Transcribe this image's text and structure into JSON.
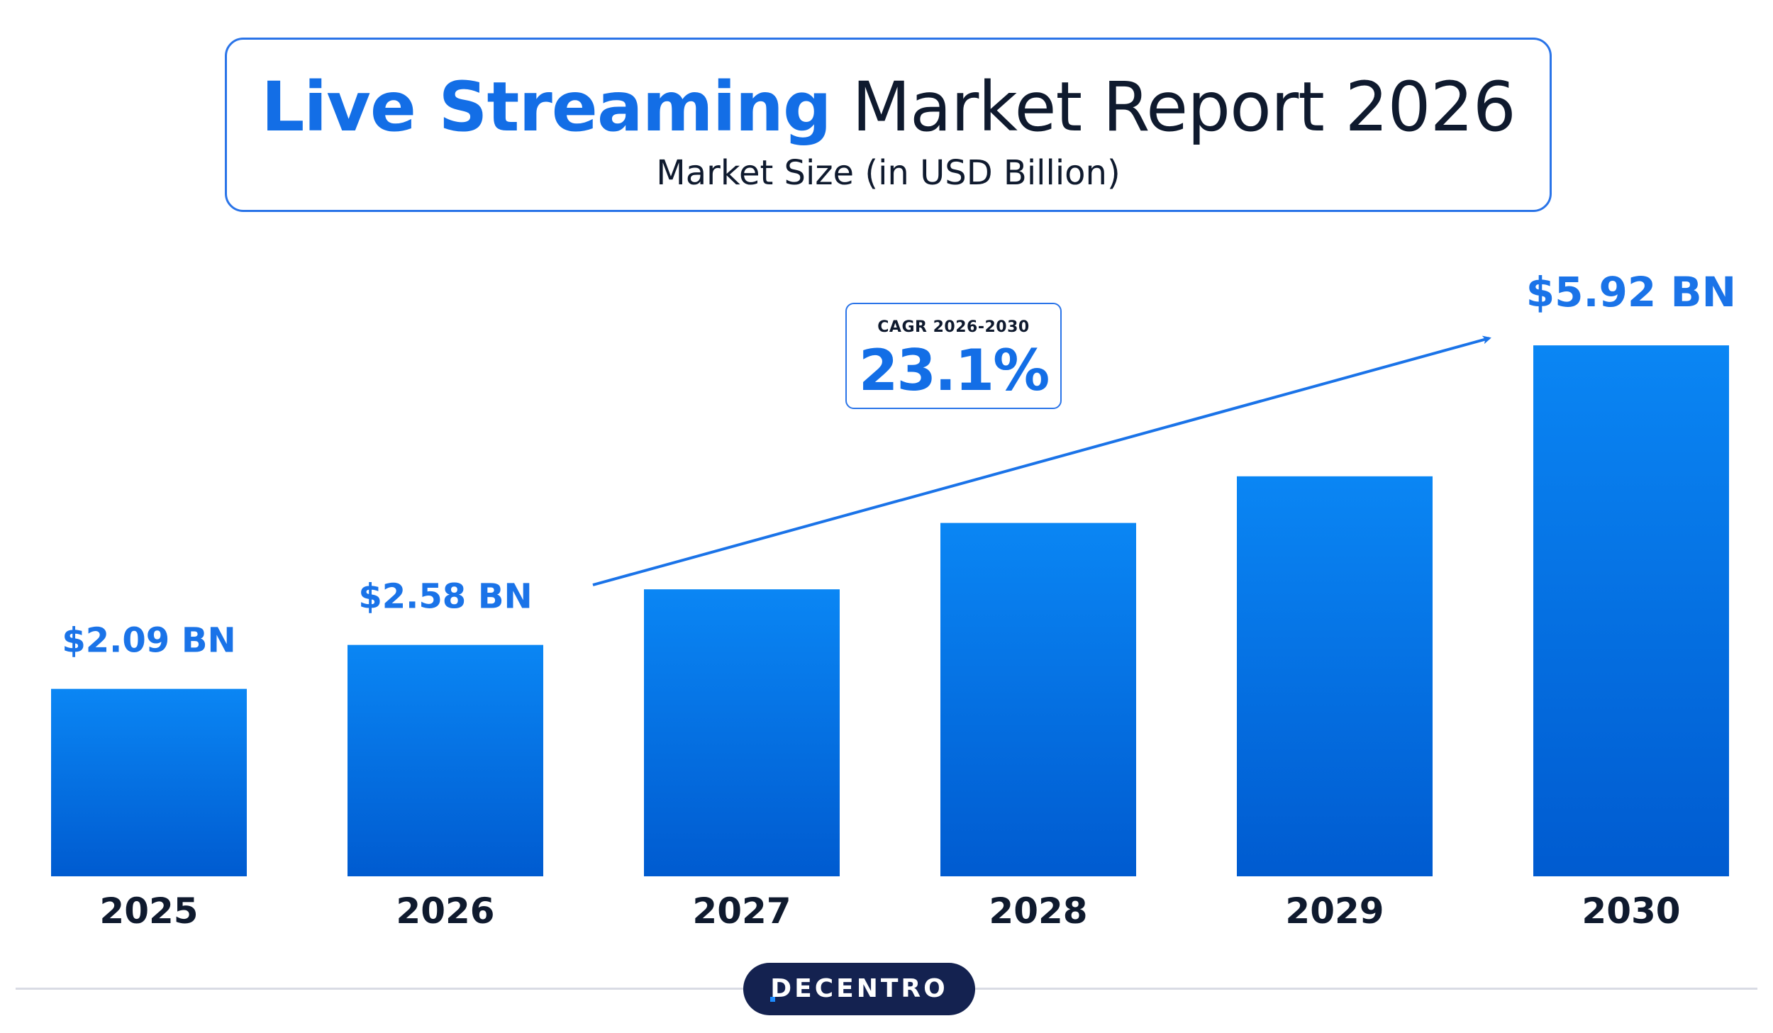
{
  "header": {
    "title_highlight": "Live Streaming",
    "title_rest": "Market Report 2026",
    "subtitle": "Market Size (in USD Billion)"
  },
  "cagr": {
    "label": "CAGR 2026-2030",
    "value": "23.1%"
  },
  "colors": {
    "accent": "#136ee6",
    "bar_top": "#0a86f4",
    "bar_bottom": "#005bd0",
    "dark": "#0f1a2e",
    "logo_bg": "#142250"
  },
  "chart_data": {
    "type": "bar",
    "categories": [
      "2025",
      "2026",
      "2027",
      "2028",
      "2029",
      "2030"
    ],
    "values": [
      2.09,
      2.58,
      3.2,
      3.94,
      4.46,
      5.92
    ],
    "data_labels": [
      "$2.09 BN",
      "$2.58 BN",
      "",
      "",
      "",
      "$5.92 BN"
    ],
    "title": "Live Streaming Market Report 2026",
    "subtitle": "Market Size (in USD Billion)",
    "ylim": [
      0,
      6.3
    ],
    "grid": false,
    "legend": "none",
    "annotation": "CAGR 2026-2030 23.1%"
  },
  "footer": {
    "logo_text": "DECENTRO"
  }
}
